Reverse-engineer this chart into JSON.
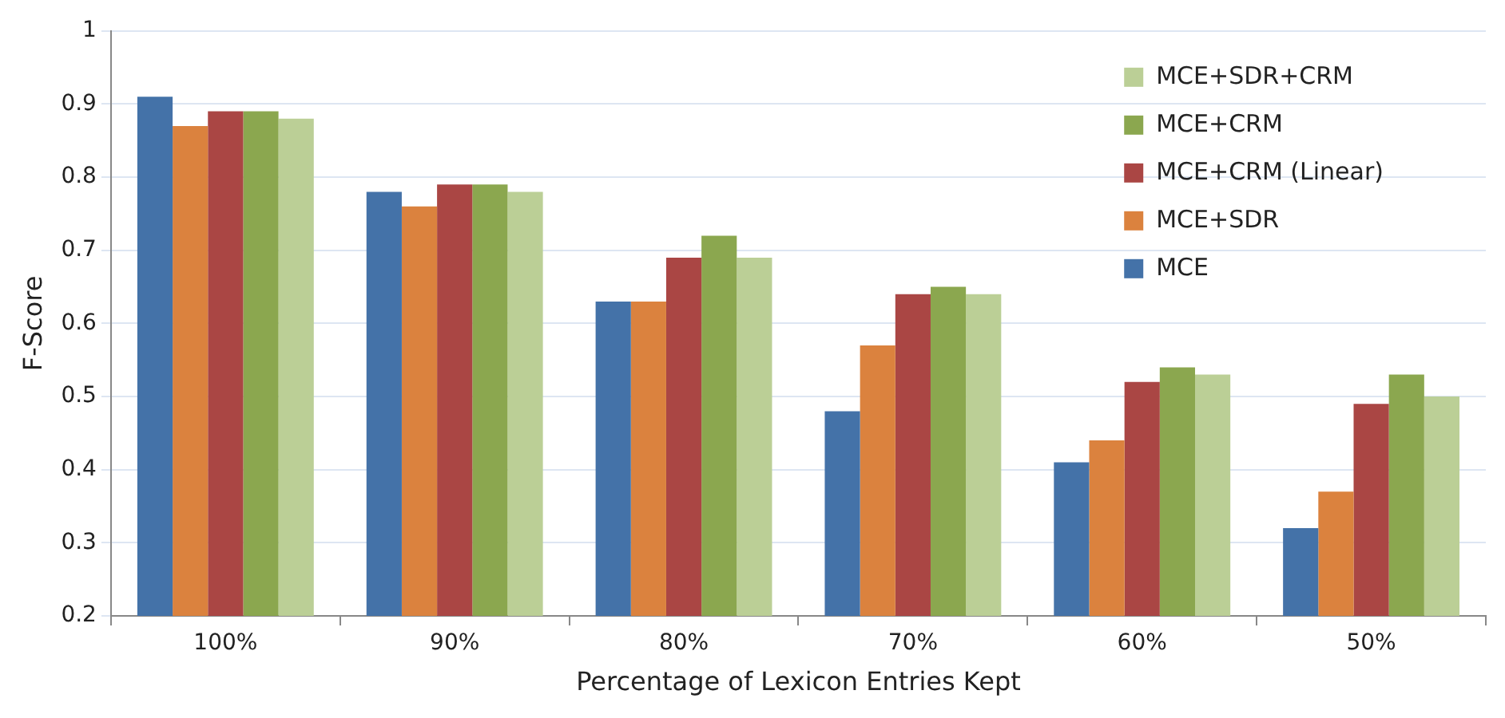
{
  "chart_data": {
    "type": "bar",
    "xlabel": "Percentage of Lexicon Entries Kept",
    "ylabel": "F-Score",
    "categories": [
      "100%",
      "90%",
      "80%",
      "70%",
      "60%",
      "50%"
    ],
    "series": [
      {
        "name": "MCE",
        "color": "#4472a8",
        "values": [
          0.91,
          0.78,
          0.63,
          0.48,
          0.41,
          0.32
        ]
      },
      {
        "name": "MCE+SDR",
        "color": "#db823e",
        "values": [
          0.87,
          0.76,
          0.63,
          0.57,
          0.44,
          0.37
        ]
      },
      {
        "name": "MCE+CRM (Linear)",
        "color": "#aa4644",
        "values": [
          0.89,
          0.79,
          0.69,
          0.64,
          0.52,
          0.49
        ]
      },
      {
        "name": "MCE+CRM",
        "color": "#8ba74f",
        "values": [
          0.89,
          0.79,
          0.72,
          0.65,
          0.54,
          0.53
        ]
      },
      {
        "name": "MCE+SDR+CRM",
        "color": "#bbcf96",
        "values": [
          0.88,
          0.78,
          0.69,
          0.64,
          0.53,
          0.5
        ]
      }
    ],
    "ylim": [
      0.2,
      1
    ],
    "yticks": [
      0.2,
      0.3,
      0.4,
      0.5,
      0.6,
      0.7,
      0.8,
      0.9,
      1
    ],
    "grid": "y",
    "legend": "top right"
  }
}
